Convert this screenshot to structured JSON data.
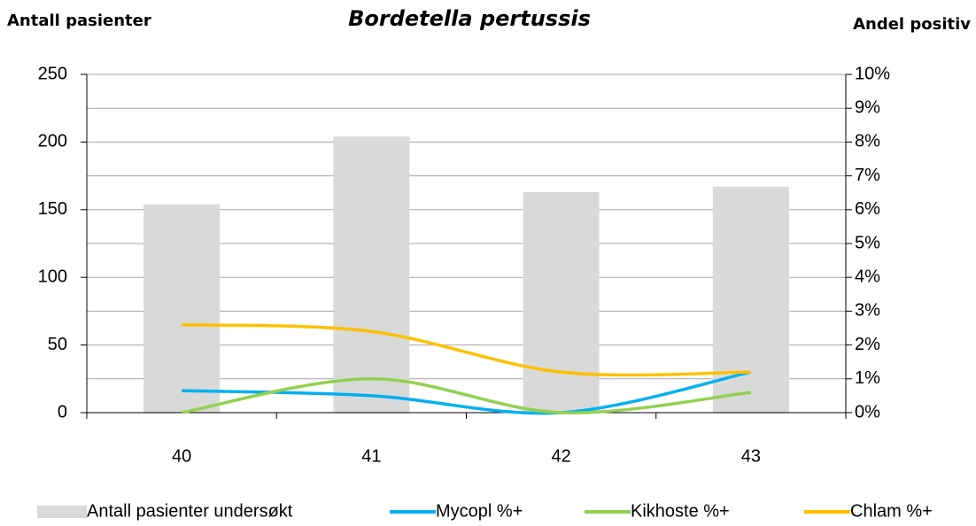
{
  "chart_data": {
    "type": "bar_line",
    "title": "Bordetella pertussis",
    "y_label": "Antall pasienter",
    "y2_label": "Andel positiv",
    "categories": [
      "40",
      "41",
      "42",
      "43"
    ],
    "series": [
      {
        "name": "Antall pasienter undersøkt",
        "type": "bar",
        "color": "#d9d9d9",
        "values": [
          154,
          204,
          163,
          167
        ]
      },
      {
        "name": "Mycopl %+",
        "type": "line",
        "axis": "y2",
        "color": "#00b0f0",
        "values": [
          0.65,
          0.5,
          0,
          1.2
        ]
      },
      {
        "name": "Kikhoste %+",
        "type": "line",
        "axis": "y2",
        "color": "#92d050",
        "values": [
          0,
          1.0,
          0,
          0.6
        ]
      },
      {
        "name": "Chlam %+",
        "type": "line",
        "axis": "y2",
        "color": "#ffc000",
        "values": [
          2.6,
          2.4,
          1.2,
          1.2
        ]
      }
    ],
    "ylim": [
      0,
      250
    ],
    "yticks": [
      0,
      50,
      100,
      150,
      200,
      250
    ],
    "y2lim": [
      0,
      10
    ],
    "y2ticks": [
      {
        "value": 0,
        "label": "0%"
      },
      {
        "value": 1,
        "label": "1%"
      },
      {
        "value": 2,
        "label": "2%"
      },
      {
        "value": 3,
        "label": "3%"
      },
      {
        "value": 4,
        "label": "4%"
      },
      {
        "value": 5,
        "label": "5%"
      },
      {
        "value": 6,
        "label": "6%"
      },
      {
        "value": 7,
        "label": "7%"
      },
      {
        "value": 8,
        "label": "8%"
      },
      {
        "value": 9,
        "label": "9%"
      },
      {
        "value": 10,
        "label": "10%"
      }
    ],
    "grid": true,
    "legend": "bottom"
  }
}
